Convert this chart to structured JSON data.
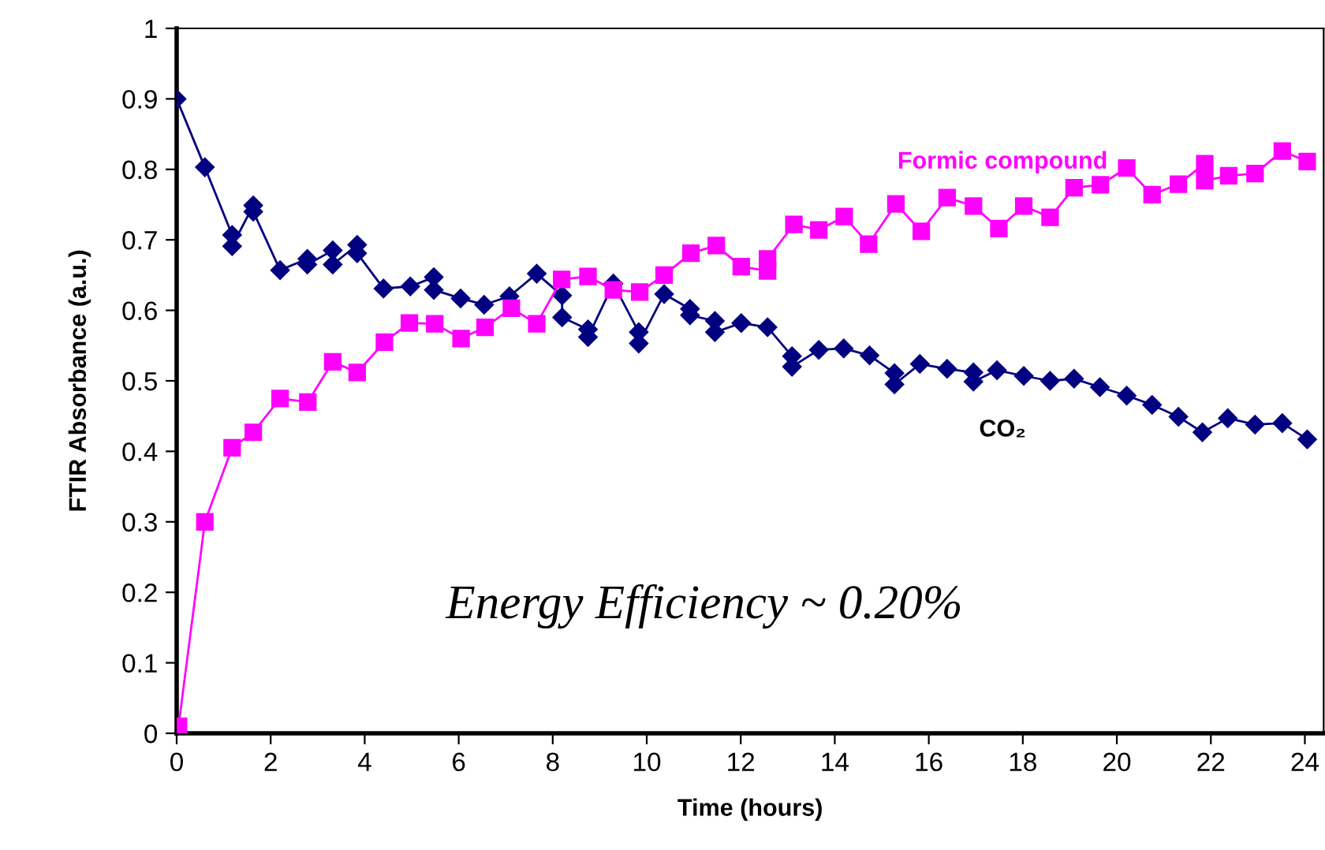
{
  "chart_data": {
    "type": "line",
    "xlabel": "Time (hours)",
    "ylabel": "FTIR Absorbance (a.u.)",
    "xlim": [
      0,
      24.4
    ],
    "xticks": [
      0,
      2,
      4,
      6,
      8,
      10,
      12,
      14,
      16,
      18,
      20,
      22,
      24
    ],
    "ylim": [
      0,
      1
    ],
    "yticks": [
      0,
      0.1,
      0.2,
      0.3,
      0.4,
      0.5,
      0.6,
      0.7,
      0.8,
      0.9,
      1
    ],
    "grid": false,
    "legend": false,
    "line_style": "solid",
    "annotations": [
      "Energy Efficiency ~ 0.20%"
    ],
    "series": [
      {
        "name": "Formic compound",
        "color": "#ff00ff",
        "marker": "square",
        "x": [
          0.04,
          0.6,
          1.18,
          1.63,
          2.2,
          2.79,
          3.32,
          3.84,
          4.42,
          4.95,
          5.49,
          6.05,
          6.56,
          7.12,
          7.66,
          8.19,
          8.75,
          9.29,
          9.85,
          10.37,
          10.94,
          11.48,
          12.01,
          12.57,
          12.57,
          13.13,
          13.66,
          14.2,
          14.72,
          15.3,
          15.84,
          16.39,
          16.95,
          17.49,
          18.02,
          18.58,
          19.09,
          19.65,
          20.21,
          20.75,
          21.31,
          21.87,
          21.87,
          22.38,
          22.94,
          23.52,
          24.05
        ],
        "values": [
          0.01,
          0.3,
          0.405,
          0.427,
          0.475,
          0.47,
          0.527,
          0.512,
          0.555,
          0.582,
          0.581,
          0.56,
          0.576,
          0.603,
          0.581,
          0.644,
          0.648,
          0.629,
          0.626,
          0.65,
          0.681,
          0.692,
          0.662,
          0.656,
          0.673,
          0.722,
          0.714,
          0.733,
          0.694,
          0.751,
          0.712,
          0.76,
          0.748,
          0.716,
          0.748,
          0.732,
          0.774,
          0.778,
          0.802,
          0.764,
          0.779,
          0.808,
          0.784,
          0.791,
          0.794,
          0.826,
          0.811
        ]
      },
      {
        "name": "CO₂",
        "color": "#000080",
        "marker": "diamond",
        "x": [
          0,
          0.6,
          1.18,
          1.18,
          1.63,
          1.63,
          2.2,
          2.78,
          2.78,
          3.32,
          3.32,
          3.84,
          3.84,
          4.4,
          4.97,
          5.47,
          5.47,
          6.04,
          6.54,
          7.08,
          7.66,
          8.2,
          8.2,
          8.75,
          8.75,
          9.29,
          9.83,
          9.83,
          10.37,
          10.92,
          10.92,
          11.45,
          11.45,
          12.01,
          12.57,
          13.09,
          13.09,
          13.66,
          14.19,
          14.74,
          15.27,
          15.27,
          15.81,
          16.39,
          16.95,
          16.95,
          17.45,
          18.02,
          18.58,
          19.09,
          19.64,
          20.21,
          20.75,
          21.31,
          21.82,
          22.36,
          22.94,
          23.52,
          24.05
        ],
        "values": [
          0.9,
          0.803,
          0.707,
          0.691,
          0.749,
          0.74,
          0.657,
          0.673,
          0.665,
          0.685,
          0.665,
          0.693,
          0.681,
          0.631,
          0.634,
          0.647,
          0.629,
          0.617,
          0.608,
          0.62,
          0.652,
          0.621,
          0.59,
          0.573,
          0.562,
          0.638,
          0.569,
          0.553,
          0.623,
          0.602,
          0.593,
          0.585,
          0.569,
          0.582,
          0.576,
          0.535,
          0.52,
          0.544,
          0.546,
          0.536,
          0.511,
          0.495,
          0.524,
          0.517,
          0.512,
          0.499,
          0.515,
          0.507,
          0.5,
          0.503,
          0.491,
          0.479,
          0.466,
          0.449,
          0.427,
          0.447,
          0.438,
          0.44,
          0.417
        ]
      }
    ]
  }
}
